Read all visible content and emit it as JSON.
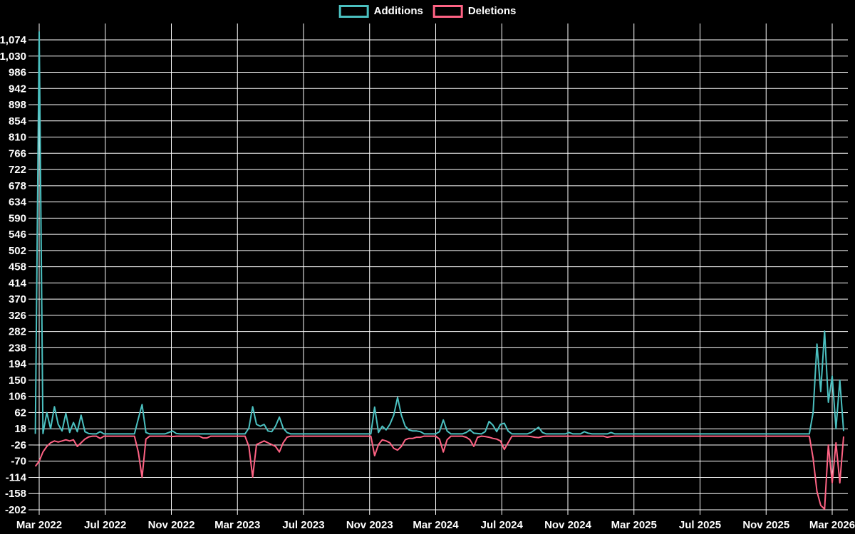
{
  "chart_data": {
    "type": "line",
    "title": "",
    "background_color": "#000000",
    "grid": true,
    "grid_color": "#ffffff",
    "legend_position": "top-center",
    "x_unit": "week",
    "weeks_per_x_tick": 17.333,
    "x_tick_labels": [
      "Mar 2022",
      "Jul 2022",
      "Nov 2022",
      "Mar 2023",
      "Jul 2023",
      "Nov 2023",
      "Mar 2024",
      "Jul 2024",
      "Nov 2024",
      "Mar 2025",
      "Jul 2025",
      "Nov 2025",
      "Mar 2026"
    ],
    "y_ticks": [
      1074,
      1030,
      986,
      942,
      898,
      854,
      810,
      766,
      722,
      678,
      634,
      590,
      546,
      502,
      458,
      414,
      370,
      326,
      282,
      238,
      194,
      150,
      106,
      62,
      18,
      -26,
      -70,
      -114,
      -158,
      -202
    ],
    "ylim": [
      -202,
      1119
    ],
    "series": [
      {
        "name": "Additions",
        "color": "#4bc0c0",
        "values": [
          4,
          1096,
          5,
          62,
          18,
          78,
          30,
          12,
          60,
          8,
          35,
          10,
          55,
          10,
          5,
          4,
          4,
          10,
          4,
          4,
          4,
          4,
          4,
          4,
          4,
          4,
          4,
          45,
          84,
          8,
          4,
          4,
          4,
          4,
          4,
          8,
          12,
          5,
          4,
          4,
          4,
          4,
          4,
          4,
          4,
          4,
          4,
          4,
          4,
          4,
          4,
          4,
          4,
          4,
          4,
          4,
          20,
          78,
          30,
          25,
          30,
          12,
          10,
          25,
          50,
          20,
          8,
          4,
          4,
          4,
          4,
          4,
          4,
          4,
          4,
          4,
          4,
          4,
          4,
          4,
          4,
          4,
          4,
          4,
          4,
          4,
          4,
          4,
          4,
          77,
          8,
          25,
          15,
          30,
          55,
          103,
          55,
          25,
          15,
          12,
          12,
          10,
          4,
          4,
          4,
          4,
          10,
          42,
          12,
          4,
          4,
          4,
          4,
          8,
          15,
          6,
          5,
          4,
          10,
          38,
          28,
          10,
          30,
          33,
          12,
          4,
          4,
          4,
          4,
          4,
          8,
          15,
          22,
          8,
          4,
          4,
          4,
          4,
          4,
          4,
          8,
          4,
          4,
          4,
          10,
          6,
          4,
          4,
          4,
          4,
          4,
          8,
          4,
          4,
          4,
          4,
          4,
          4,
          4,
          4,
          4,
          4,
          4,
          4,
          4,
          4,
          4,
          4,
          4,
          4,
          4,
          4,
          4,
          4,
          4,
          4,
          4,
          4,
          4,
          4,
          4,
          4,
          4,
          4,
          4,
          4,
          4,
          4,
          4,
          4,
          4,
          4,
          4,
          4,
          4,
          4,
          4,
          4,
          4,
          4,
          4,
          4,
          4,
          4,
          62,
          248,
          119,
          283,
          90,
          161,
          18,
          150,
          12
        ]
      },
      {
        "name": "Deletions",
        "color": "#ff6384",
        "values": [
          -84,
          -70,
          -45,
          -30,
          -20,
          -15,
          -18,
          -15,
          -12,
          -15,
          -12,
          -30,
          -20,
          -10,
          -4,
          -2,
          -2,
          -8,
          -2,
          -2,
          -2,
          -2,
          -2,
          -2,
          -2,
          -2,
          -2,
          -45,
          -114,
          -10,
          -2,
          -2,
          -2,
          -2,
          -2,
          -2,
          -3,
          -2,
          -2,
          -2,
          -2,
          -2,
          -2,
          -2,
          -7,
          -7,
          -2,
          -2,
          -2,
          -2,
          -2,
          -2,
          -2,
          -2,
          -2,
          -2,
          -30,
          -113,
          -25,
          -20,
          -15,
          -20,
          -25,
          -30,
          -45,
          -20,
          -5,
          -2,
          -2,
          -2,
          -2,
          -2,
          -2,
          -2,
          -2,
          -2,
          -2,
          -2,
          -2,
          -2,
          -2,
          -2,
          -2,
          -2,
          -2,
          -2,
          -2,
          -2,
          -2,
          -55,
          -25,
          -12,
          -15,
          -20,
          -35,
          -40,
          -30,
          -12,
          -8,
          -8,
          -5,
          -5,
          -2,
          -2,
          -2,
          -2,
          -10,
          -45,
          -12,
          -2,
          -2,
          -2,
          -2,
          -5,
          -12,
          -30,
          -5,
          -2,
          -3,
          -5,
          -8,
          -10,
          -15,
          -38,
          -20,
          -2,
          -2,
          -2,
          -2,
          -2,
          -3,
          -5,
          -6,
          -3,
          -2,
          -2,
          -2,
          -2,
          -2,
          -2,
          -2,
          -2,
          -2,
          -2,
          -2,
          -2,
          -2,
          -2,
          -2,
          -2,
          -5,
          -3,
          -2,
          -2,
          -2,
          -2,
          -2,
          -2,
          -2,
          -2,
          -2,
          -2,
          -2,
          -2,
          -2,
          -2,
          -2,
          -2,
          -2,
          -2,
          -2,
          -2,
          -2,
          -2,
          -2,
          -2,
          -2,
          -2,
          -2,
          -2,
          -2,
          -2,
          -2,
          -2,
          -2,
          -2,
          -2,
          -2,
          -2,
          -2,
          -2,
          -2,
          -2,
          -2,
          -2,
          -2,
          -2,
          -2,
          -2,
          -2,
          -2,
          -2,
          -2,
          -2,
          -62,
          -152,
          -190,
          -200,
          -26,
          -129,
          -20,
          -129,
          -3
        ]
      }
    ]
  }
}
